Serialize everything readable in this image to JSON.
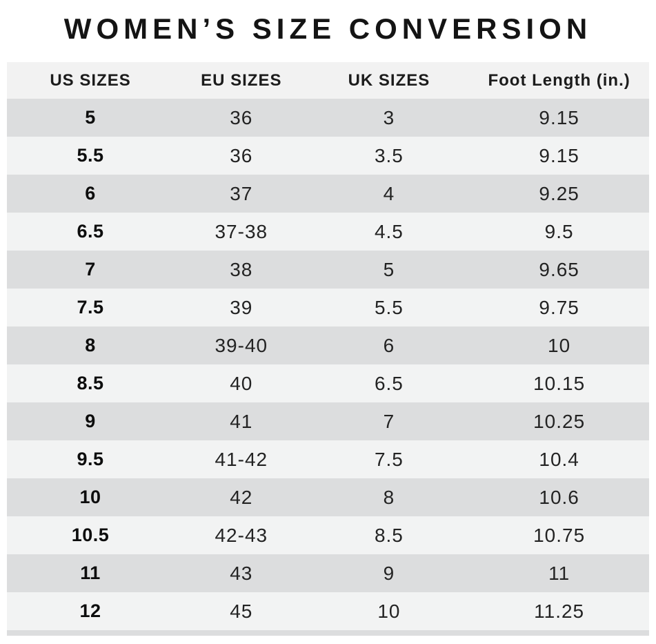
{
  "title": "WOMEN’S SIZE CONVERSION",
  "chart_data": {
    "type": "table",
    "title": "WOMEN’S SIZE CONVERSION",
    "columns": [
      "US SIZES",
      "EU SIZES",
      "UK SIZES",
      "Foot Length (in.)"
    ],
    "rows": [
      [
        "5",
        "36",
        "3",
        "9.15"
      ],
      [
        "5.5",
        "36",
        "3.5",
        "9.15"
      ],
      [
        "6",
        "37",
        "4",
        "9.25"
      ],
      [
        "6.5",
        "37-38",
        "4.5",
        "9.5"
      ],
      [
        "7",
        "38",
        "5",
        "9.65"
      ],
      [
        "7.5",
        "39",
        "5.5",
        "9.75"
      ],
      [
        "8",
        "39-40",
        "6",
        "10"
      ],
      [
        "8.5",
        "40",
        "6.5",
        "10.15"
      ],
      [
        "9",
        "41",
        "7",
        "10.25"
      ],
      [
        "9.5",
        "41-42",
        "7.5",
        "10.4"
      ],
      [
        "10",
        "42",
        "8",
        "10.6"
      ],
      [
        "10.5",
        "42-43",
        "8.5",
        "10.75"
      ],
      [
        "11",
        "43",
        "9",
        "11"
      ],
      [
        "12",
        "45",
        "10",
        "11.25"
      ]
    ],
    "layout": {
      "emphasized_column": "US SIZES",
      "row_striping": "alternating",
      "first_data_row_shade": "dark"
    }
  },
  "colors": {
    "background": "#ffffff",
    "row_dark": "#dcddde",
    "row_light": "#f2f3f3",
    "header_bg": "#f2f2f2",
    "text": "#232323",
    "text_strong": "#0d0d0d"
  }
}
